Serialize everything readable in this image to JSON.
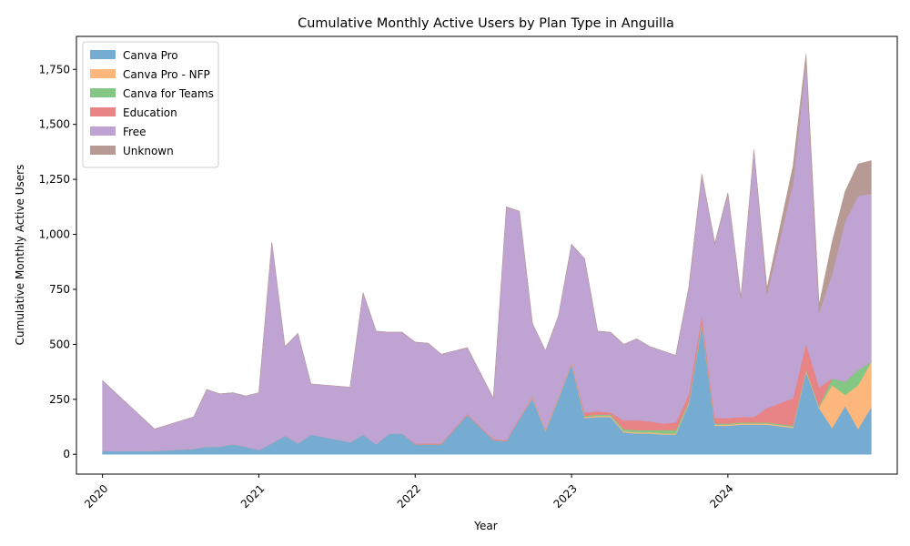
{
  "chart_data": {
    "type": "area",
    "stacked": true,
    "title": "Cumulative Monthly Active Users by Plan Type in Anguilla",
    "xlabel": "Year",
    "ylabel": "Cumulative Monthly Active Users",
    "xlim": [
      "2019-11",
      "2025-02"
    ],
    "ylim": [
      -90,
      1900
    ],
    "grid": false,
    "legend_position": "top-left",
    "x_ticks": [
      {
        "date": "2020-01",
        "label": "2020"
      },
      {
        "date": "2021-01",
        "label": "2021"
      },
      {
        "date": "2022-01",
        "label": "2022"
      },
      {
        "date": "2023-01",
        "label": "2023"
      },
      {
        "date": "2024-01",
        "label": "2024"
      }
    ],
    "y_ticks": [
      {
        "value": 0,
        "label": "0"
      },
      {
        "value": 250,
        "label": "250"
      },
      {
        "value": 500,
        "label": "500"
      },
      {
        "value": 750,
        "label": "750"
      },
      {
        "value": 1000,
        "label": "1,000"
      },
      {
        "value": 1250,
        "label": "1,250"
      },
      {
        "value": 1500,
        "label": "1,500"
      },
      {
        "value": 1750,
        "label": "1,750"
      }
    ],
    "x": [
      "2020-01",
      "2020-05",
      "2020-08",
      "2020-09",
      "2020-10",
      "2020-11",
      "2020-12",
      "2021-01",
      "2021-02",
      "2021-03",
      "2021-04",
      "2021-05",
      "2021-08",
      "2021-09",
      "2021-10",
      "2021-11",
      "2021-12",
      "2022-01",
      "2022-02",
      "2022-03",
      "2022-05",
      "2022-07",
      "2022-08",
      "2022-09",
      "2022-10",
      "2022-11",
      "2022-12",
      "2023-01",
      "2023-02",
      "2023-03",
      "2023-04",
      "2023-05",
      "2023-06",
      "2023-07",
      "2023-08",
      "2023-09",
      "2023-10",
      "2023-11",
      "2023-12",
      "2024-01",
      "2024-02",
      "2024-03",
      "2024-04",
      "2024-06",
      "2024-07",
      "2024-08",
      "2024-09",
      "2024-10",
      "2024-11",
      "2024-12"
    ],
    "series": [
      {
        "name": "Canva Pro",
        "color": "#76acd1",
        "values": [
          15,
          15,
          25,
          35,
          35,
          45,
          35,
          20,
          50,
          85,
          50,
          90,
          55,
          90,
          45,
          95,
          95,
          45,
          45,
          45,
          180,
          65,
          60,
          160,
          255,
          105,
          255,
          410,
          165,
          170,
          170,
          100,
          95,
          95,
          90,
          90,
          230,
          590,
          130,
          130,
          135,
          135,
          135,
          120,
          375,
          210,
          120,
          220,
          115,
          215
        ]
      },
      {
        "name": "Canva Pro - NFP",
        "color": "#fdb67b",
        "values": [
          0,
          0,
          0,
          0,
          0,
          0,
          0,
          0,
          0,
          0,
          0,
          0,
          0,
          0,
          0,
          0,
          0,
          0,
          0,
          0,
          0,
          0,
          0,
          0,
          5,
          5,
          5,
          5,
          5,
          5,
          5,
          5,
          5,
          5,
          5,
          5,
          5,
          5,
          5,
          5,
          5,
          5,
          5,
          5,
          5,
          5,
          195,
          50,
          200,
          205
        ]
      },
      {
        "name": "Canva for Teams",
        "color": "#84c784",
        "values": [
          0,
          0,
          0,
          0,
          0,
          0,
          0,
          0,
          0,
          0,
          0,
          0,
          0,
          0,
          0,
          0,
          0,
          0,
          0,
          0,
          0,
          0,
          0,
          0,
          0,
          0,
          0,
          0,
          5,
          5,
          5,
          10,
          10,
          10,
          15,
          15,
          5,
          5,
          5,
          5,
          5,
          5,
          5,
          5,
          5,
          5,
          30,
          60,
          70,
          0
        ]
      },
      {
        "name": "Education",
        "color": "#e88485",
        "values": [
          0,
          0,
          0,
          0,
          0,
          0,
          0,
          0,
          0,
          0,
          0,
          0,
          0,
          0,
          0,
          0,
          0,
          5,
          5,
          5,
          5,
          5,
          5,
          5,
          5,
          5,
          5,
          5,
          15,
          15,
          10,
          40,
          45,
          40,
          30,
          35,
          35,
          35,
          25,
          25,
          25,
          25,
          65,
          125,
          120,
          85,
          0,
          0,
          0,
          0
        ]
      },
      {
        "name": "Free",
        "color": "#bea3d3",
        "values": [
          320,
          100,
          145,
          260,
          240,
          235,
          230,
          260,
          915,
          405,
          500,
          230,
          250,
          645,
          515,
          460,
          460,
          460,
          455,
          405,
          300,
          185,
          1060,
          940,
          330,
          355,
          365,
          535,
          700,
          365,
          365,
          345,
          370,
          340,
          330,
          305,
          480,
          635,
          790,
          1020,
          540,
          1210,
          520,
          975,
          1290,
          340,
          475,
          730,
          790,
          765
        ]
      },
      {
        "name": "Unknown",
        "color": "#b89a94",
        "values": [
          0,
          0,
          0,
          0,
          0,
          0,
          0,
          0,
          0,
          0,
          0,
          0,
          0,
          0,
          0,
          0,
          0,
          0,
          0,
          0,
          0,
          0,
          0,
          0,
          0,
          0,
          0,
          0,
          0,
          0,
          0,
          0,
          0,
          0,
          0,
          0,
          5,
          5,
          5,
          5,
          5,
          5,
          25,
          80,
          25,
          35,
          145,
          135,
          145,
          150
        ]
      }
    ]
  }
}
